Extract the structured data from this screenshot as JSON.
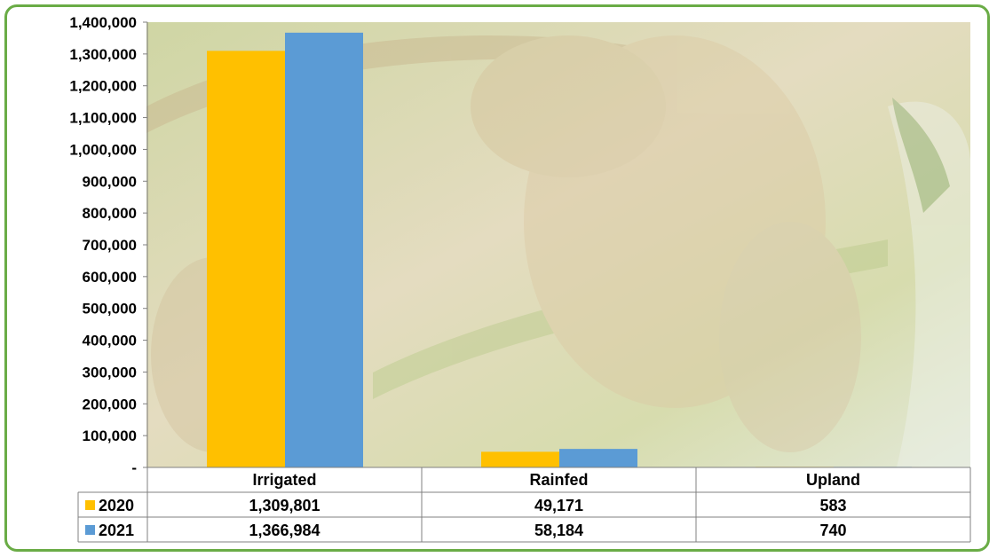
{
  "chart_data": {
    "type": "bar",
    "title": "",
    "xlabel": "",
    "ylabel": "",
    "categories": [
      "Irrigated",
      "Rainfed",
      "Upland"
    ],
    "ylim": [
      0,
      1400000
    ],
    "yticks": [
      0,
      100000,
      200000,
      300000,
      400000,
      500000,
      600000,
      700000,
      800000,
      900000,
      1000000,
      1100000,
      1200000,
      1300000,
      1400000
    ],
    "ytick_labels": [
      "-",
      "100,000",
      "200,000",
      "300,000",
      "400,000",
      "500,000",
      "600,000",
      "700,000",
      "800,000",
      "900,000",
      "1,000,000",
      "1,100,000",
      "1,200,000",
      "1,300,000",
      "1,400,000"
    ],
    "grid": false,
    "legend": "data-table",
    "series": [
      {
        "name": "2020",
        "color": "#ffc000",
        "values": [
          1309801,
          49171,
          583
        ],
        "labels": [
          "1,309,801",
          "49,171",
          "583"
        ]
      },
      {
        "name": "2021",
        "color": "#5b9bd5",
        "values": [
          1366984,
          58184,
          740
        ],
        "labels": [
          "1,366,984",
          "58,184",
          "740"
        ]
      }
    ]
  },
  "colors": {
    "frame": "#6aac46",
    "photo_background": "#d9dfb4"
  }
}
